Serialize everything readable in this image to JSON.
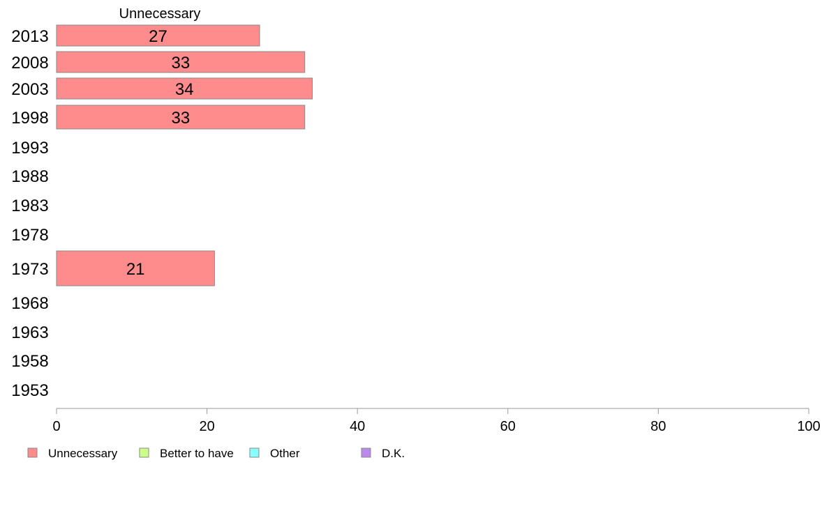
{
  "chart_data": {
    "type": "bar",
    "orientation": "horizontal",
    "stacked": true,
    "column_header": "Unnecessary",
    "categories": [
      "2013",
      "2008",
      "2003",
      "1998",
      "1993",
      "1988",
      "1983",
      "1978",
      "1973",
      "1968",
      "1963",
      "1958",
      "1953"
    ],
    "series": [
      {
        "name": "Unnecessary",
        "color": "#ff8c8c",
        "values": [
          27,
          33,
          34,
          33,
          null,
          null,
          null,
          null,
          21,
          null,
          null,
          null,
          null
        ]
      },
      {
        "name": "Better to have",
        "color": "#ccff88",
        "values": [
          null,
          null,
          null,
          null,
          null,
          null,
          null,
          null,
          null,
          null,
          null,
          null,
          null
        ]
      },
      {
        "name": "Other",
        "color": "#88ffff",
        "values": [
          null,
          null,
          null,
          null,
          null,
          null,
          null,
          null,
          null,
          null,
          null,
          null,
          null
        ]
      },
      {
        "name": "D.K.",
        "color": "#bb88ee",
        "values": [
          null,
          null,
          null,
          null,
          null,
          null,
          null,
          null,
          null,
          null,
          null,
          null,
          null
        ]
      }
    ],
    "xlim": [
      0,
      100
    ],
    "x_ticks": [
      "0",
      "20",
      "40",
      "60",
      "80",
      "100"
    ],
    "grid": false,
    "legend_position": "bottom-left"
  }
}
